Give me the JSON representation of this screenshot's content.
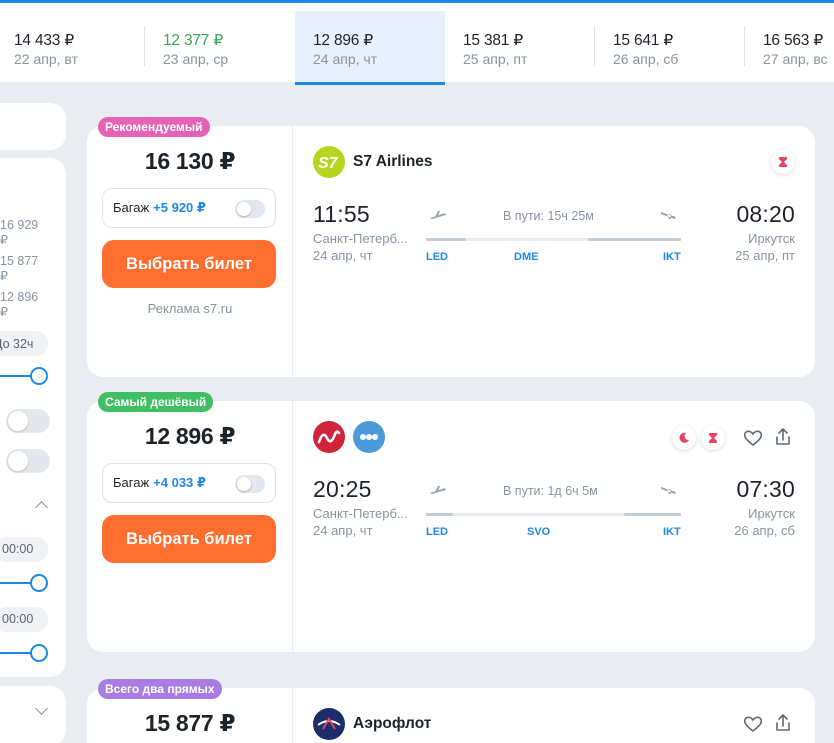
{
  "date_strip": [
    {
      "price": "14 433 ₽",
      "day": "22 апр, вт",
      "cheap": false,
      "active": false
    },
    {
      "price": "12 377 ₽",
      "day": "23 апр, ср",
      "cheap": true,
      "active": false
    },
    {
      "price": "12 896 ₽",
      "day": "24 апр, чт",
      "cheap": false,
      "active": true
    },
    {
      "price": "15 381 ₽",
      "day": "25 апр, пт",
      "cheap": false,
      "active": false
    },
    {
      "price": "15 641 ₽",
      "day": "26 апр, сб",
      "cheap": false,
      "active": false
    },
    {
      "price": "16 563 ₽",
      "day": "27 апр, вс",
      "cheap": false,
      "active": false
    }
  ],
  "filters": {
    "prices": [
      "16 929 ₽",
      "15 877 ₽",
      "12 896 ₽"
    ],
    "duration_chip": "До 32ч",
    "time_chip_1": "00:00",
    "time_chip_2": "00:00"
  },
  "tickets": [
    {
      "badge": "Рекомендуемый",
      "price": "16 130 ₽",
      "baggage_label": "Багаж",
      "baggage_price": "+5 920 ₽",
      "buy_label": "Выбрать билет",
      "ad_text": "Реклама s7.ru",
      "airline": "S7 Airlines",
      "dep_time": "11:55",
      "arr_time": "08:20",
      "dep_city": "Санкт-Петерб...",
      "arr_city": "Иркутск",
      "dep_date": "24 апр, чт",
      "arr_date": "25 апр, пт",
      "duration": "В пути: 15ч 25м",
      "codes": [
        "LED",
        "DME",
        "IKT"
      ]
    },
    {
      "badge": "Самый дешёвый",
      "price": "12 896 ₽",
      "baggage_label": "Багаж",
      "baggage_price": "+4 033 ₽",
      "buy_label": "Выбрать билет",
      "dep_time": "20:25",
      "arr_time": "07:30",
      "dep_city": "Санкт-Петерб...",
      "arr_city": "Иркутск",
      "dep_date": "24 апр, чт",
      "arr_date": "26 апр, сб",
      "duration": "В пути: 1д 6ч 5м",
      "codes": [
        "LED",
        "SVO",
        "IKT"
      ]
    },
    {
      "badge": "Всего два прямых",
      "price": "15 877 ₽",
      "airline": "Аэрофлот"
    }
  ],
  "colors": {
    "accent": "#1e88e5",
    "buy_button": "#ff6d2f",
    "cheap_price": "#3aa657",
    "badge_recommended": "#e563b5",
    "badge_cheapest": "#3fbe64",
    "badge_direct": "#a77ce3"
  }
}
